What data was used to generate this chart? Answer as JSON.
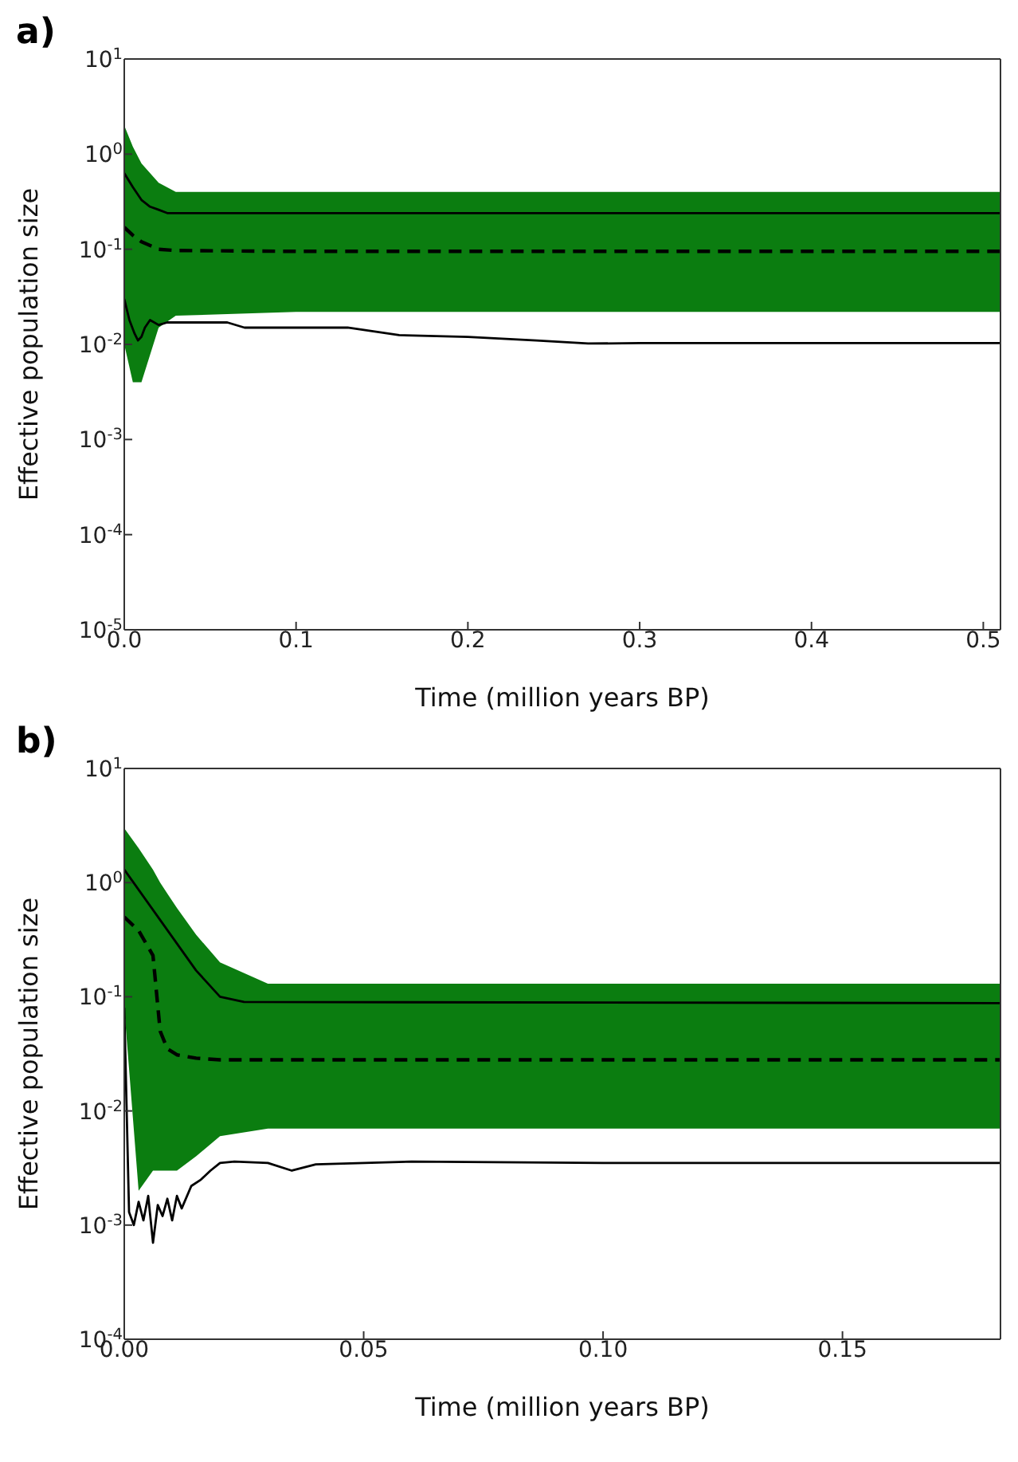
{
  "chart_data": [
    {
      "type": "line",
      "title": "a)",
      "xlabel": "Time (million years BP)",
      "ylabel": "Effective population size",
      "log": "y",
      "color": "#0b7d10",
      "xlim": [
        0,
        0.51
      ],
      "xticks": [
        {
          "value": 0,
          "label": "0.0"
        },
        0.1,
        0.2,
        0.3,
        0.4,
        0.5
      ],
      "ylim": [
        1e-05,
        10
      ],
      "yticks": [
        {
          "value": 1e-05,
          "label": "10$^{-5}$"
        },
        {
          "value": 0.0001,
          "label": "10$^{-4}$"
        },
        {
          "value": 0.001,
          "label": "10$^{-3}$"
        },
        {
          "value": 0.01,
          "label": "10$^{-2}$"
        },
        {
          "value": 0.1,
          "label": "10$^{-1}$"
        },
        {
          "value": 1,
          "label": "10$^{0}$"
        },
        {
          "value": 10,
          "label": "10$^{1}$"
        }
      ],
      "grid": false,
      "legend": false,
      "marker": "none",
      "series": [
        {
          "color": "#000000",
          "line_style": "solid",
          "x": [
            0,
            0.005,
            0.01,
            0.015,
            0.02,
            0.025,
            0.05,
            0.2,
            0.51
          ],
          "values": [
            0.63,
            0.45,
            0.33,
            0.28,
            0.26,
            0.24,
            0.24,
            0.24,
            0.24
          ]
        },
        {
          "color": "#000000",
          "line_style": "dashed",
          "x": [
            0,
            0.005,
            0.01,
            0.02,
            0.03,
            0.1,
            0.2,
            0.3,
            0.4,
            0.51
          ],
          "values": [
            0.17,
            0.14,
            0.12,
            0.1,
            0.097,
            0.095,
            0.095,
            0.095,
            0.095,
            0.095
          ],
          "lower": [
            0.01,
            0.004,
            0.004,
            0.015,
            0.02,
            0.022,
            0.022,
            0.022,
            0.022,
            0.022
          ],
          "upper": [
            2,
            1.2,
            0.8,
            0.5,
            0.4,
            0.4,
            0.4,
            0.4,
            0.4,
            0.4
          ]
        },
        {
          "color": "#000000",
          "line_style": "solid",
          "x": [
            0,
            0.003,
            0.006,
            0.008,
            0.01,
            0.012,
            0.015,
            0.02,
            0.025,
            0.03,
            0.06,
            0.07,
            0.13,
            0.16,
            0.2,
            0.24,
            0.27,
            0.3,
            0.51
          ],
          "values": [
            0.03,
            0.018,
            0.013,
            0.011,
            0.012,
            0.015,
            0.018,
            0.016,
            0.017,
            0.017,
            0.017,
            0.015,
            0.015,
            0.0125,
            0.012,
            0.011,
            0.0102,
            0.0103,
            0.0103
          ]
        }
      ]
    },
    {
      "type": "line",
      "title": "b)",
      "xlabel": "Time (million years BP)",
      "ylabel": "Effective population size",
      "log": "y",
      "color": "#0b7d10",
      "xlim": [
        0,
        0.183
      ],
      "xticks": [
        {
          "value": 0,
          "label": "0.00"
        },
        {
          "value": 0.05,
          "label": "0.05"
        },
        {
          "value": 0.1,
          "label": "0.10"
        },
        {
          "value": 0.15,
          "label": "0.15"
        }
      ],
      "ylim": [
        0.0001,
        10
      ],
      "yticks": [
        {
          "value": 0.0001,
          "label": "10$^{-4}$"
        },
        {
          "value": 0.001,
          "label": "10$^{-3}$"
        },
        {
          "value": 0.01,
          "label": "10$^{-2}$"
        },
        {
          "value": 0.1,
          "label": "10$^{-1}$"
        },
        {
          "value": 1,
          "label": "10$^{0}$"
        },
        {
          "value": 10,
          "label": "10$^{1}$"
        }
      ],
      "grid": false,
      "legend": false,
      "marker": "none",
      "series": [
        {
          "color": "#000000",
          "line_style": "solid",
          "x": [
            0,
            0.015,
            0.02,
            0.025,
            0.183
          ],
          "values": [
            1.3,
            0.17,
            0.1,
            0.09,
            0.088
          ]
        },
        {
          "color": "#000000",
          "line_style": "dashed",
          "x": [
            0,
            0.003,
            0.006,
            0.0075,
            0.009,
            0.011,
            0.015,
            0.02,
            0.03,
            0.1,
            0.183
          ],
          "values": [
            0.5,
            0.38,
            0.23,
            0.05,
            0.035,
            0.031,
            0.029,
            0.028,
            0.028,
            0.028,
            0.028
          ],
          "lower": [
            0.08,
            0.002,
            0.003,
            0.003,
            0.003,
            0.003,
            0.004,
            0.006,
            0.007,
            0.007,
            0.007
          ],
          "upper": [
            3,
            2,
            1.3,
            1,
            0.8,
            0.6,
            0.35,
            0.2,
            0.13,
            0.13,
            0.13
          ]
        },
        {
          "color": "#000000",
          "line_style": "solid",
          "x": [
            0,
            0.001,
            0.002,
            0.003,
            0.004,
            0.005,
            0.006,
            0.007,
            0.008,
            0.009,
            0.01,
            0.011,
            0.012,
            0.014,
            0.016,
            0.018,
            0.02,
            0.023,
            0.03,
            0.035,
            0.04,
            0.06,
            0.1,
            0.183
          ],
          "values": [
            0.08,
            0.0013,
            0.001,
            0.0016,
            0.0011,
            0.0018,
            0.0007,
            0.0015,
            0.0012,
            0.0017,
            0.0011,
            0.0018,
            0.0014,
            0.0022,
            0.0025,
            0.003,
            0.0035,
            0.0036,
            0.0035,
            0.003,
            0.0034,
            0.0036,
            0.0035,
            0.0035
          ]
        }
      ]
    }
  ]
}
